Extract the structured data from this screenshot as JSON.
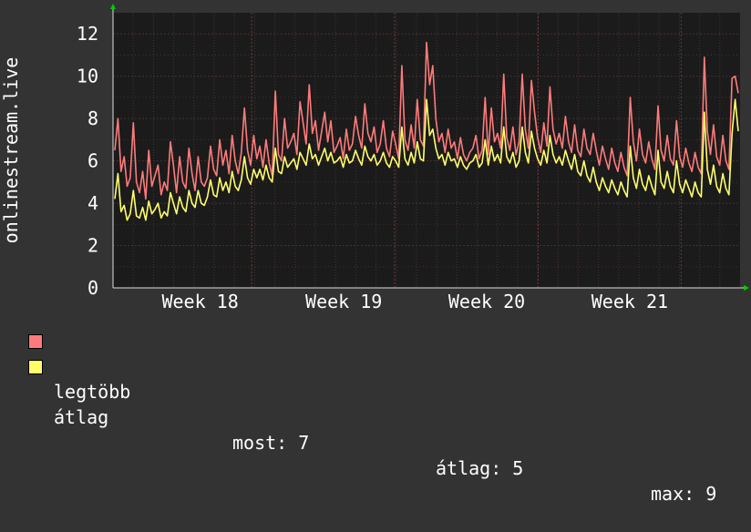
{
  "colors": {
    "background": "#333333",
    "plot_background": "#1b1b1b",
    "grid": "#4a3030",
    "axis_arrow": "#00cc00",
    "max_series": "#ff7b7b",
    "avg_series": "#ffff6a"
  },
  "legend": {
    "max_label": "legtöbb",
    "avg_label": "átlag",
    "stats": {
      "current": "most: 7",
      "average": "átlag: 5",
      "max": "max: 9"
    }
  },
  "chart_data": {
    "type": "line",
    "title": "",
    "ylabel": "onlinestream.live",
    "xlabel": "",
    "ylim": [
      0,
      13
    ],
    "yticks": [
      "0",
      "2",
      "4",
      "6",
      "8",
      "10",
      "12"
    ],
    "xticks": [
      "Week 18",
      "Week 19",
      "Week 20",
      "Week 21"
    ],
    "grid": true,
    "series": [
      {
        "name": "legtöbb",
        "color": "#ff7b7b",
        "values": [
          6.5,
          8.0,
          5.5,
          6.2,
          4.8,
          5.2,
          7.8,
          5.0,
          4.5,
          5.5,
          4.2,
          6.5,
          4.8,
          5.3,
          5.8,
          4.4,
          5.0,
          4.6,
          6.9,
          5.8,
          4.5,
          6.2,
          5.0,
          4.7,
          6.6,
          5.4,
          4.6,
          6.2,
          5.0,
          4.8,
          5.2,
          6.7,
          5.6,
          5.3,
          7.0,
          5.8,
          6.5,
          5.4,
          7.2,
          6.0,
          5.4,
          6.4,
          8.5,
          6.5,
          5.8,
          7.2,
          6.1,
          6.7,
          5.7,
          7.0,
          5.9,
          5.3,
          9.3,
          6.3,
          6.0,
          8.0,
          6.6,
          6.9,
          7.3,
          6.3,
          8.8,
          7.8,
          6.8,
          9.6,
          7.3,
          7.9,
          6.5,
          7.4,
          8.3,
          6.9,
          7.9,
          6.4,
          6.7,
          7.1,
          6.1,
          7.5,
          6.5,
          6.8,
          8.1,
          7.2,
          6.6,
          8.7,
          7.3,
          6.9,
          7.6,
          6.4,
          6.8,
          7.9,
          6.6,
          6.2,
          7.4,
          6.8,
          6.1,
          10.5,
          7.0,
          6.5,
          7.7,
          6.6,
          8.9,
          7.0,
          6.7,
          11.6,
          9.6,
          10.5,
          8.0,
          6.9,
          7.3,
          6.4,
          7.5,
          6.6,
          6.9,
          6.1,
          7.1,
          6.3,
          6.0,
          6.4,
          6.6,
          7.2,
          6.1,
          6.5,
          9.0,
          6.3,
          8.5,
          6.9,
          7.3,
          6.6,
          10.1,
          7.1,
          6.5,
          7.6,
          6.3,
          6.9,
          10.1,
          7.5,
          6.6,
          9.8,
          8.3,
          7.1,
          6.4,
          7.8,
          6.7,
          9.5,
          7.5,
          6.8,
          7.3,
          6.6,
          8.1,
          6.9,
          6.4,
          7.7,
          6.5,
          6.2,
          7.5,
          6.6,
          6.3,
          7.3,
          6.5,
          5.8,
          6.7,
          6.1,
          5.6,
          6.6,
          5.9,
          5.5,
          6.4,
          5.7,
          5.3,
          9.0,
          6.9,
          6.0,
          7.5,
          6.3,
          5.9,
          6.9,
          6.1,
          5.6,
          8.6,
          6.5,
          6.0,
          7.2,
          6.1,
          5.8,
          7.9,
          6.2,
          5.7,
          6.6,
          5.9,
          5.5,
          6.4,
          5.7,
          5.4,
          10.9,
          7.4,
          6.3,
          7.7,
          6.2,
          5.8,
          7.2,
          6.0,
          5.6,
          9.9,
          10.0,
          9.2
        ]
      },
      {
        "name": "átlag",
        "color": "#ffff6a",
        "values": [
          4.2,
          5.4,
          3.6,
          3.9,
          3.2,
          3.5,
          4.6,
          3.4,
          3.3,
          3.8,
          3.2,
          4.1,
          3.5,
          3.7,
          4.0,
          3.3,
          3.6,
          3.4,
          4.5,
          4.0,
          3.5,
          4.3,
          3.8,
          3.6,
          4.6,
          4.0,
          3.8,
          4.6,
          4.0,
          3.9,
          4.3,
          5.1,
          4.4,
          4.3,
          5.2,
          4.6,
          5.0,
          4.5,
          5.5,
          4.8,
          4.6,
          5.1,
          6.2,
          5.2,
          4.9,
          5.6,
          5.2,
          5.6,
          5.1,
          5.8,
          5.2,
          5.0,
          6.6,
          5.5,
          5.4,
          6.2,
          5.7,
          5.9,
          6.1,
          5.6,
          6.4,
          6.1,
          5.8,
          6.8,
          6.1,
          6.3,
          5.8,
          6.2,
          6.6,
          6.0,
          6.4,
          5.9,
          6.0,
          6.2,
          5.7,
          6.3,
          5.9,
          6.0,
          6.5,
          6.1,
          5.8,
          6.7,
          6.2,
          6.0,
          6.3,
          5.8,
          6.0,
          6.4,
          5.9,
          5.7,
          6.2,
          6.0,
          5.7,
          7.6,
          6.1,
          5.8,
          6.4,
          5.9,
          6.9,
          6.1,
          6.0,
          8.9,
          7.2,
          7.5,
          6.6,
          6.1,
          6.3,
          5.8,
          6.4,
          6.0,
          6.1,
          5.7,
          6.2,
          5.8,
          5.6,
          5.9,
          6.0,
          6.3,
          5.7,
          5.9,
          7.0,
          5.8,
          6.7,
          6.0,
          6.3,
          5.9,
          7.6,
          6.2,
          5.9,
          6.4,
          5.7,
          6.0,
          7.6,
          6.4,
          5.9,
          7.4,
          6.6,
          6.1,
          5.8,
          6.5,
          5.9,
          7.2,
          6.3,
          5.9,
          6.2,
          5.8,
          6.5,
          6.0,
          5.6,
          6.3,
          5.5,
          5.3,
          6.0,
          5.3,
          5.0,
          5.7,
          5.0,
          4.6,
          5.2,
          4.8,
          4.5,
          5.1,
          4.7,
          4.4,
          5.0,
          4.6,
          4.3,
          6.7,
          5.2,
          4.7,
          5.6,
          4.9,
          4.6,
          5.3,
          4.8,
          4.4,
          6.5,
          5.0,
          4.7,
          5.5,
          4.8,
          4.5,
          6.0,
          4.9,
          4.5,
          5.1,
          4.7,
          4.3,
          5.0,
          4.5,
          4.3,
          8.3,
          5.6,
          4.9,
          5.8,
          4.8,
          4.5,
          5.4,
          4.7,
          4.4,
          7.3,
          8.9,
          7.4
        ]
      }
    ]
  }
}
